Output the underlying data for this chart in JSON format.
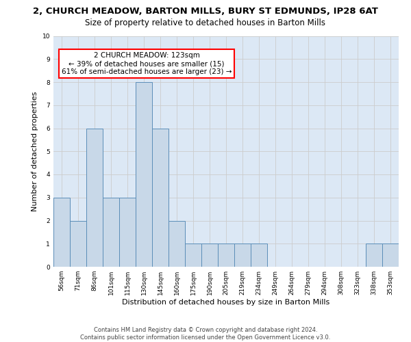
{
  "title_line1": "2, CHURCH MEADOW, BARTON MILLS, BURY ST EDMUNDS, IP28 6AT",
  "title_line2": "Size of property relative to detached houses in Barton Mills",
  "xlabel": "Distribution of detached houses by size in Barton Mills",
  "ylabel": "Number of detached properties",
  "categories": [
    "56sqm",
    "71sqm",
    "86sqm",
    "101sqm",
    "115sqm",
    "130sqm",
    "145sqm",
    "160sqm",
    "175sqm",
    "190sqm",
    "205sqm",
    "219sqm",
    "234sqm",
    "249sqm",
    "264sqm",
    "279sqm",
    "294sqm",
    "308sqm",
    "323sqm",
    "338sqm",
    "353sqm"
  ],
  "values": [
    3,
    2,
    6,
    3,
    3,
    8,
    6,
    2,
    1,
    1,
    1,
    1,
    1,
    0,
    0,
    0,
    0,
    0,
    0,
    1,
    1
  ],
  "bar_color": "#c8d8e8",
  "bar_edge_color": "#5b8db8",
  "annotation_text": "2 CHURCH MEADOW: 123sqm\n← 39% of detached houses are smaller (15)\n61% of semi-detached houses are larger (23) →",
  "annotation_box_color": "white",
  "annotation_box_edge_color": "red",
  "ylim": [
    0,
    10
  ],
  "yticks": [
    0,
    1,
    2,
    3,
    4,
    5,
    6,
    7,
    8,
    9,
    10
  ],
  "grid_color": "#cccccc",
  "bg_color": "#dce8f5",
  "footer_line1": "Contains HM Land Registry data © Crown copyright and database right 2024.",
  "footer_line2": "Contains public sector information licensed under the Open Government Licence v3.0.",
  "title_fontsize": 9.5,
  "subtitle_fontsize": 8.5,
  "axis_label_fontsize": 8,
  "tick_fontsize": 6.5,
  "annotation_fontsize": 7.5,
  "footer_fontsize": 6
}
